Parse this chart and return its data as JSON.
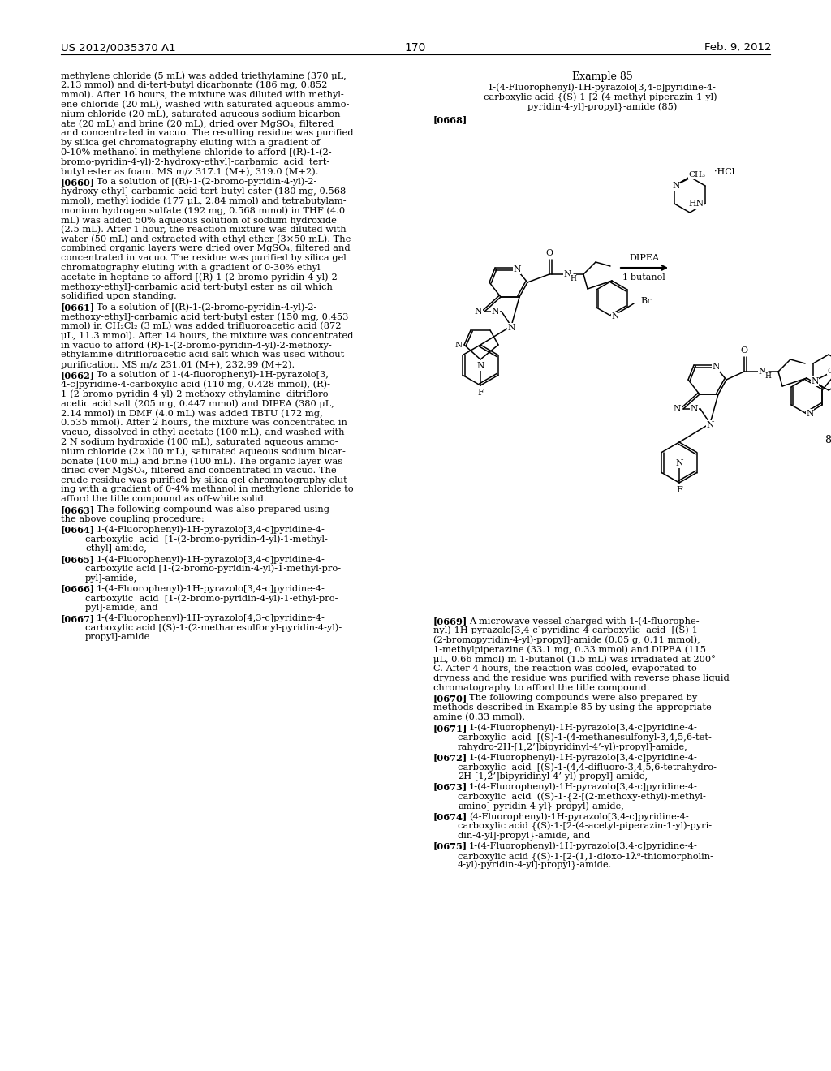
{
  "page_number": "170",
  "patent_number": "US 2012/0035370 A1",
  "patent_date": "Feb. 9, 2012",
  "background_color": "#ffffff"
}
